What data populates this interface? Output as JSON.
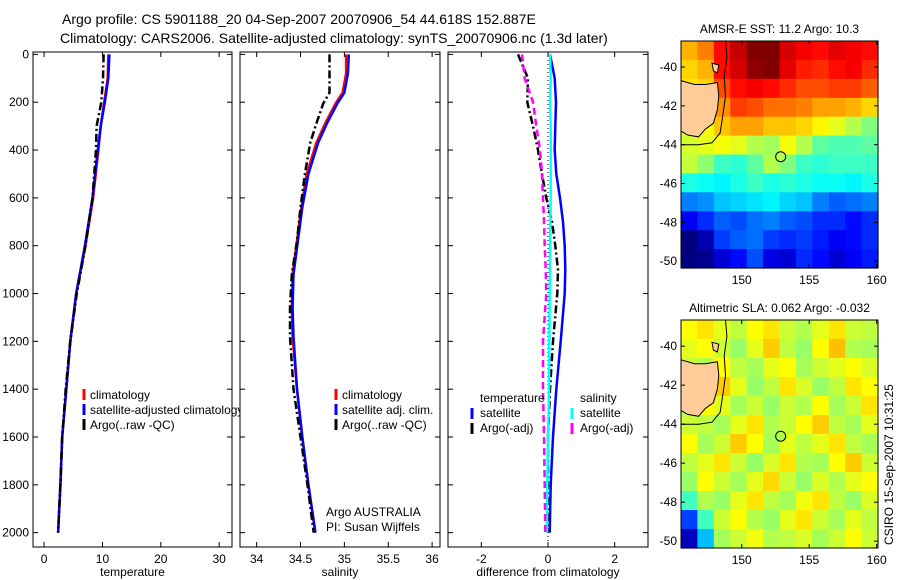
{
  "title": {
    "line1": "Argo profile: CS 5901188_20 04-Sep-2007 20070906_54 44.618S 152.887E",
    "line2": "Climatology: CARS2006. Satellite-adjusted climatology: synTS_20070906.nc (1.3d later)"
  },
  "credit": {
    "line1": "Argo AUSTRALIA",
    "line2": "PI: Susan Wijffels",
    "stamp": "CSIRO 15-Sep-2007 10:31:25"
  },
  "colors": {
    "clim": "#ff0000",
    "satellite": "#0000ff",
    "argo": "#000000",
    "sat_sal": "#00ffff",
    "argo_sal": "#ff00ff",
    "land": "#ffcc99"
  },
  "chart_data": [
    {
      "type": "line",
      "xlabel": "temperature",
      "ylabel": "",
      "xlim": [
        -1.9,
        32.2
      ],
      "ylim": [
        2060,
        -10
      ],
      "xticks": [
        "0",
        "10",
        "20",
        "30"
      ],
      "xtick_values": [
        0,
        10,
        20,
        30
      ],
      "yticks": [
        "0",
        "200",
        "400",
        "600",
        "800",
        "1000",
        "1200",
        "1400",
        "1600",
        "1800",
        "2000"
      ],
      "ytick_values": [
        0,
        200,
        400,
        600,
        800,
        1000,
        1200,
        1400,
        1600,
        1800,
        2000
      ],
      "depth": [
        0,
        100,
        200,
        300,
        400,
        600,
        800,
        1000,
        1200,
        1400,
        1600,
        1800,
        2000
      ],
      "series": [
        {
          "name": "climatology",
          "color": "#ff0000",
          "style": "solid",
          "values": [
            11.0,
            10.9,
            10.3,
            9.7,
            9.3,
            8.4,
            7.1,
            5.5,
            4.5,
            3.8,
            3.1,
            2.8,
            2.4
          ]
        },
        {
          "name": "satellite-adjusted climatology",
          "color": "#0000ff",
          "style": "solid",
          "values": [
            11.2,
            11.0,
            10.4,
            9.7,
            9.2,
            8.3,
            7.0,
            5.5,
            4.5,
            3.8,
            3.1,
            2.8,
            2.4
          ]
        },
        {
          "name": "Argo(..raw -QC)",
          "color": "#000000",
          "style": "dashdot",
          "values": [
            10.2,
            10.1,
            9.8,
            9.0,
            8.9,
            8.3,
            7.1,
            5.6,
            4.5,
            3.7,
            3.1,
            2.8,
            2.4
          ]
        }
      ],
      "legend": [
        "climatology",
        "satellite-adjusted climatology",
        "Argo(..raw -QC)"
      ],
      "legend_placement": "lower-right"
    },
    {
      "type": "line",
      "xlabel": "salinity",
      "xlim": [
        33.81,
        36.09
      ],
      "ylim": [
        2060,
        -10
      ],
      "xticks": [
        "34",
        "34.5",
        "35",
        "35.5",
        "36"
      ],
      "xtick_values": [
        34,
        34.5,
        35,
        35.5,
        36
      ],
      "depth": [
        0,
        80,
        160,
        205,
        290,
        370,
        500,
        640,
        780,
        920,
        1060,
        1180,
        1400,
        1600,
        1800,
        2000
      ],
      "series": [
        {
          "name": "climatology",
          "color": "#ff0000",
          "style": "solid",
          "values": [
            35.02,
            35.02,
            34.98,
            34.9,
            34.78,
            34.68,
            34.57,
            34.51,
            34.46,
            34.41,
            34.4,
            34.41,
            34.46,
            34.52,
            34.59,
            34.67
          ]
        },
        {
          "name": "satellite adj. clim.",
          "color": "#0000ff",
          "style": "solid",
          "values": [
            35.05,
            35.04,
            35.0,
            34.92,
            34.8,
            34.7,
            34.59,
            34.52,
            34.47,
            34.42,
            34.41,
            34.42,
            34.46,
            34.52,
            34.59,
            34.67
          ]
        },
        {
          "name": "Argo(..raw -QC)",
          "color": "#000000",
          "style": "dashdot",
          "values": [
            34.83,
            34.83,
            34.83,
            34.76,
            34.68,
            34.61,
            34.55,
            34.5,
            34.46,
            34.4,
            34.38,
            34.38,
            34.42,
            34.5,
            34.58,
            34.65
          ]
        }
      ],
      "legend": [
        "climatology",
        "satellite adj. clim.",
        "Argo(..raw -QC)"
      ],
      "legend_placement": "lower-right"
    },
    {
      "type": "line",
      "xlabel": "difference from climatology",
      "xlim": [
        -3.0,
        3.0
      ],
      "ylim": [
        2060,
        -10
      ],
      "xticks": [
        "-2",
        "0",
        "2"
      ],
      "xtick_values": [
        -2,
        0,
        2
      ],
      "depth": [
        0,
        100,
        200,
        300,
        400,
        500,
        600,
        700,
        800,
        900,
        1000,
        1200,
        1400,
        1600,
        1800,
        2000
      ],
      "series": [
        {
          "name": "temperature satellite",
          "color": "#0000ff",
          "style": "solid",
          "values": [
            0.06,
            0.2,
            0.24,
            0.22,
            0.2,
            0.25,
            0.36,
            0.45,
            0.5,
            0.52,
            0.5,
            0.38,
            0.25,
            0.15,
            0.08,
            0.05
          ]
        },
        {
          "name": "temperature Argo(-adj)",
          "color": "#000000",
          "style": "dashdot",
          "values": [
            -0.9,
            -0.6,
            -0.62,
            -0.45,
            -0.3,
            -0.18,
            -0.05,
            0.12,
            0.22,
            0.3,
            0.28,
            0.15,
            0.06,
            0.0,
            0.0,
            0.0
          ]
        },
        {
          "name": "salinity satellite",
          "color": "#00ffff",
          "style": "solid",
          "values": [
            0.06,
            0.08,
            0.06,
            0.08,
            0.08,
            0.08,
            0.08,
            0.07,
            0.06,
            0.06,
            0.05,
            0.04,
            0.03,
            0.0,
            -0.02,
            -0.03
          ]
        },
        {
          "name": "salinity Argo(-adj)",
          "color": "#ff00ff",
          "style": "dash",
          "values": [
            -0.78,
            -0.7,
            -0.45,
            -0.35,
            -0.24,
            -0.18,
            -0.15,
            -0.12,
            -0.1,
            -0.07,
            -0.05,
            -0.15,
            -0.15,
            -0.12,
            -0.1,
            -0.08
          ]
        }
      ],
      "legend_headers": [
        "temperature",
        "salinity"
      ],
      "legend": [
        "satellite",
        "Argo(-adj)",
        "satellite",
        "Argo(-adj)"
      ],
      "legend_placement": "lower-center"
    },
    {
      "type": "heatmap",
      "title": "AMSR-E SST: 11.2 Argo: 10.3",
      "xlim": [
        145.5,
        160.1
      ],
      "ylim": [
        -50.35,
        -38.66
      ],
      "xticks": [
        "150",
        "155",
        "160"
      ],
      "xtick_values": [
        150,
        155,
        160
      ],
      "yticks": [
        "-40",
        "-42",
        "-44",
        "-46",
        "-48",
        "-50"
      ],
      "ytick_values": [
        -40,
        -42,
        -44,
        -46,
        -48,
        -50
      ],
      "clim": [
        8,
        14
      ],
      "marker": {
        "lon": 152.887,
        "lat": -44.618
      },
      "grid": [
        [
          12.2,
          12.5,
          13.2,
          13.6,
          14.0,
          14.0,
          13.5,
          13.3,
          13.2,
          13.4,
          13.3,
          13.2
        ],
        [
          12.0,
          12.2,
          13.2,
          13.5,
          13.9,
          14.0,
          13.4,
          13.1,
          13.0,
          13.2,
          13.3,
          13.0
        ],
        [
          11.9,
          12.0,
          12.8,
          13.2,
          13.3,
          13.2,
          13.0,
          12.8,
          12.8,
          12.9,
          12.9,
          12.7
        ],
        [
          11.8,
          11.9,
          12.4,
          12.9,
          12.8,
          12.6,
          12.6,
          12.5,
          12.3,
          12.3,
          12.2,
          12.0
        ],
        [
          11.6,
          11.7,
          12.1,
          12.3,
          12.3,
          12.1,
          12.1,
          12.0,
          11.8,
          11.6,
          11.3,
          11.0
        ],
        [
          11.5,
          11.6,
          11.7,
          11.6,
          11.3,
          11.2,
          11.7,
          11.3,
          10.8,
          10.7,
          10.7,
          10.8
        ],
        [
          11.4,
          11.1,
          10.6,
          10.5,
          10.8,
          11.3,
          11.0,
          10.6,
          10.5,
          10.6,
          10.6,
          10.6
        ],
        [
          10.4,
          10.3,
          10.2,
          10.4,
          10.6,
          10.4,
          10.5,
          10.4,
          10.3,
          10.3,
          10.2,
          10.4
        ],
        [
          9.5,
          9.6,
          9.9,
          10.0,
          10.1,
          10.2,
          10.0,
          9.9,
          9.5,
          9.3,
          9.4,
          9.5
        ],
        [
          8.7,
          9.0,
          9.3,
          9.2,
          9.4,
          9.5,
          9.3,
          9.2,
          9.0,
          9.0,
          8.8,
          9.0
        ],
        [
          8.0,
          8.3,
          9.1,
          9.3,
          9.4,
          9.1,
          9.0,
          9.1,
          8.9,
          8.7,
          8.8,
          9.0
        ],
        [
          8.0,
          8.1,
          8.5,
          8.8,
          9.2,
          8.6,
          8.5,
          9.0,
          8.8,
          8.5,
          8.7,
          8.9
        ]
      ]
    },
    {
      "type": "heatmap",
      "title": "Altimetric SLA: 0.062 Argo: -0.032",
      "xlim": [
        145.5,
        160.1
      ],
      "ylim": [
        -50.35,
        -38.66
      ],
      "xticks": [
        "150",
        "155",
        "160"
      ],
      "xtick_values": [
        150,
        155,
        160
      ],
      "yticks": [
        "-40",
        "-42",
        "-44",
        "-46",
        "-48",
        "-50"
      ],
      "ytick_values": [
        -40,
        -42,
        -44,
        -46,
        -48,
        -50
      ],
      "clim": [
        -0.4,
        0.4
      ],
      "marker": {
        "lon": 152.887,
        "lat": -44.618
      },
      "grid": [
        [
          0.1,
          0.12,
          0.08,
          0.05,
          0.1,
          0.12,
          0.06,
          0.04,
          0.08,
          0.12,
          0.06,
          0.05
        ],
        [
          0.08,
          0.1,
          0.06,
          0.02,
          0.08,
          0.14,
          0.05,
          0.02,
          0.1,
          0.15,
          0.04,
          0.03
        ],
        [
          0.06,
          0.04,
          0.1,
          0.05,
          0.03,
          0.08,
          0.1,
          0.03,
          0.06,
          0.08,
          0.1,
          0.07
        ],
        [
          0.05,
          0.08,
          0.14,
          0.08,
          0.02,
          0.05,
          0.12,
          0.07,
          0.02,
          0.05,
          0.12,
          0.1
        ],
        [
          0.04,
          0.1,
          0.08,
          0.03,
          0.06,
          0.02,
          0.06,
          0.04,
          0.1,
          0.03,
          0.06,
          0.12
        ],
        [
          0.06,
          0.05,
          0.03,
          0.08,
          0.12,
          0.04,
          0.06,
          0.1,
          0.14,
          0.05,
          0.03,
          0.08
        ],
        [
          0.1,
          0.03,
          0.06,
          0.14,
          0.1,
          0.03,
          0.08,
          0.05,
          0.08,
          0.12,
          0.05,
          0.03
        ],
        [
          0.05,
          0.08,
          0.12,
          0.06,
          0.02,
          0.07,
          0.12,
          0.04,
          0.03,
          0.1,
          0.14,
          0.06
        ],
        [
          0.02,
          0.1,
          0.06,
          0.03,
          0.08,
          0.13,
          0.06,
          0.02,
          0.07,
          0.04,
          0.08,
          0.1
        ],
        [
          -0.05,
          0.04,
          0.02,
          0.08,
          0.12,
          0.05,
          0.03,
          0.09,
          0.12,
          0.05,
          0.02,
          0.07
        ],
        [
          -0.25,
          -0.05,
          0.06,
          0.1,
          0.04,
          0.02,
          0.08,
          0.12,
          0.06,
          0.03,
          0.08,
          0.05
        ],
        [
          -0.35,
          -0.15,
          0.03,
          0.06,
          0.09,
          0.04,
          0.05,
          0.07,
          0.03,
          0.06,
          0.1,
          0.06
        ]
      ]
    }
  ]
}
